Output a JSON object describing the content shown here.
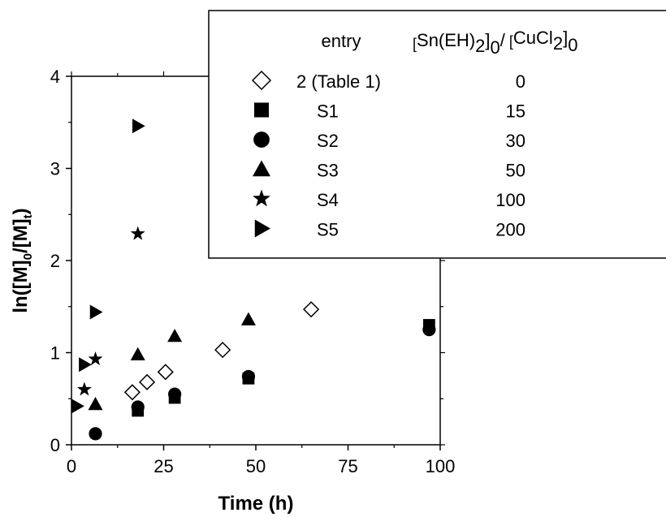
{
  "chart_data": {
    "type": "scatter",
    "xlabel": "Time (h)",
    "ylabel": "ln([M]0/[M]t)",
    "xlim": [
      0,
      100
    ],
    "ylim": [
      0,
      4
    ],
    "xticks": [
      0,
      25,
      50,
      75,
      100
    ],
    "yticks": [
      0,
      1,
      2,
      3,
      4
    ],
    "legend": {
      "header_entry": "entry",
      "header_ratio": "[Sn(EH)2]0/[CuCl2]0",
      "placement": "top-right"
    },
    "series": [
      {
        "name": "2 (Table 1)",
        "ratio": "0",
        "marker": "open-diamond",
        "x": [
          16.5,
          20.5,
          25.5,
          41,
          65
        ],
        "y": [
          0.57,
          0.68,
          0.79,
          1.03,
          1.47
        ]
      },
      {
        "name": "S1",
        "ratio": "15",
        "marker": "square",
        "x": [
          18,
          28,
          48,
          97
        ],
        "y": [
          0.37,
          0.51,
          0.72,
          1.3
        ]
      },
      {
        "name": "S2",
        "ratio": "30",
        "marker": "circle",
        "x": [
          6.5,
          18,
          28,
          48,
          97
        ],
        "y": [
          0.12,
          0.41,
          0.55,
          0.74,
          1.25
        ]
      },
      {
        "name": "S3",
        "ratio": "50",
        "marker": "triangle-up",
        "x": [
          6.5,
          18,
          28,
          48
        ],
        "y": [
          0.44,
          0.98,
          1.18,
          1.36
        ]
      },
      {
        "name": "S4",
        "ratio": "100",
        "marker": "star",
        "x": [
          3.5,
          6.5,
          18
        ],
        "y": [
          0.6,
          0.93,
          2.29
        ]
      },
      {
        "name": "S5",
        "ratio": "200",
        "marker": "triangle-right",
        "x": [
          1.5,
          3.5,
          6.5,
          18
        ],
        "y": [
          0.42,
          0.87,
          1.44,
          3.46
        ]
      }
    ]
  }
}
